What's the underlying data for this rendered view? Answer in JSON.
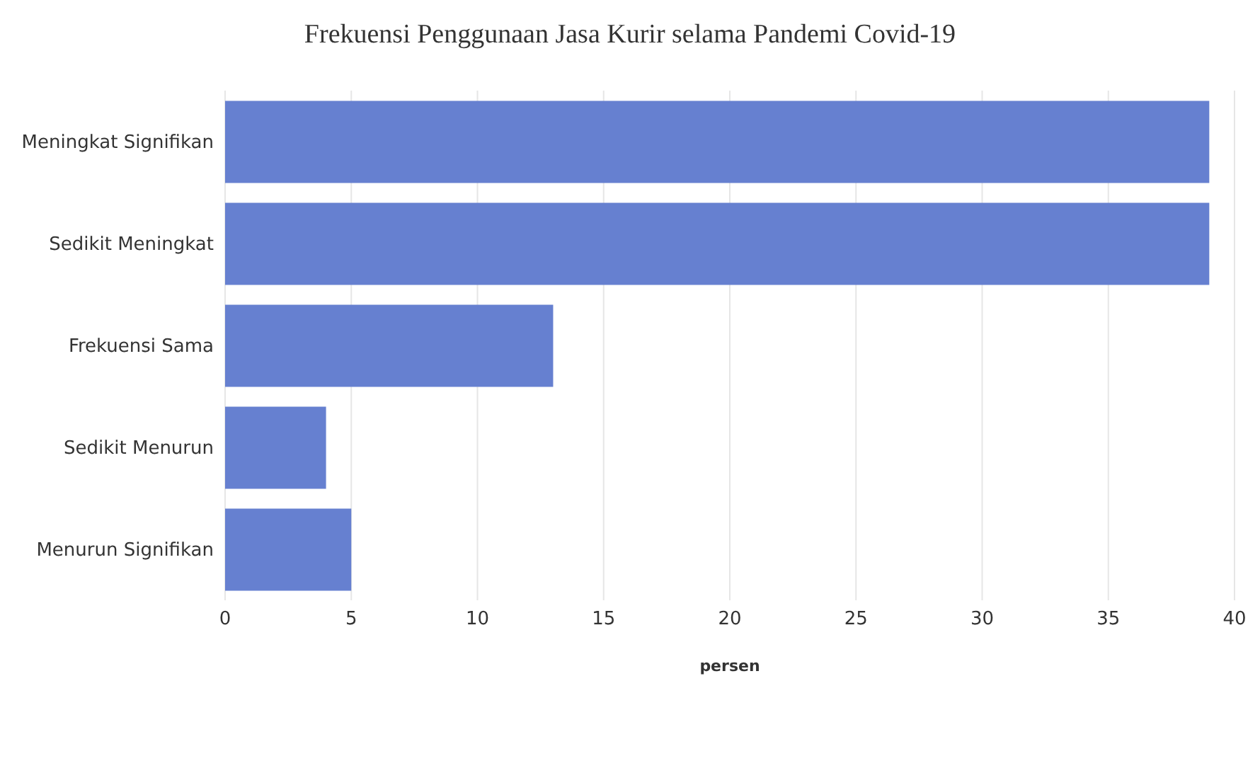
{
  "chart_data": {
    "type": "bar",
    "title": "Frekuensi Penggunaan Jasa Kurir selama Pandemi Covid-19",
    "orientation": "horizontal",
    "categories": [
      "Meningkat Signifikan",
      "Sedikit Meningkat",
      "Frekuensi Sama",
      "Sedikit Menurun",
      "Menurun Signifikan"
    ],
    "values": [
      39,
      39,
      13,
      4,
      5
    ],
    "color": "#6680d0",
    "xlabel": "persen",
    "xlim": [
      0,
      40
    ],
    "xticks": [
      0,
      5,
      10,
      15,
      20,
      25,
      30,
      35,
      40
    ],
    "grid": "x",
    "legend": false
  }
}
